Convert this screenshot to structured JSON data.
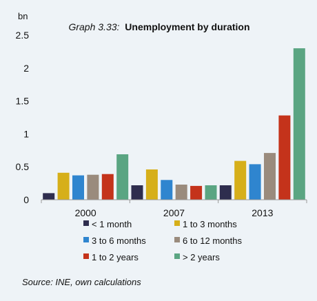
{
  "chart_data": {
    "type": "bar",
    "title_prefix": "Graph 3.33:",
    "title": "Unemployment by duration",
    "ylabel": "bn",
    "xlabel": "",
    "ylim": [
      0,
      2.5
    ],
    "yticks": [
      "0",
      "0.5",
      "1",
      "1.5",
      "2",
      "2.5"
    ],
    "grid": false,
    "legend_position": "bottom",
    "categories": [
      "2000",
      "2007",
      "2013"
    ],
    "series": [
      {
        "name": "< 1 month",
        "color": "#2e2d4e",
        "values": [
          0.1,
          0.22,
          0.22
        ]
      },
      {
        "name": "1 to 3 months",
        "color": "#d6af1a",
        "values": [
          0.41,
          0.46,
          0.59
        ]
      },
      {
        "name": "3 to 6 months",
        "color": "#2f85cf",
        "values": [
          0.37,
          0.3,
          0.54
        ]
      },
      {
        "name": "6 to 12 months",
        "color": "#9a8b7d",
        "values": [
          0.38,
          0.23,
          0.71
        ]
      },
      {
        "name": "1 to 2 years",
        "color": "#c4331b",
        "values": [
          0.39,
          0.21,
          1.28
        ]
      },
      {
        "name": "> 2 years",
        "color": "#5aa582",
        "values": [
          0.69,
          0.22,
          2.3
        ]
      }
    ],
    "source": "Source: INE, own calculations"
  }
}
